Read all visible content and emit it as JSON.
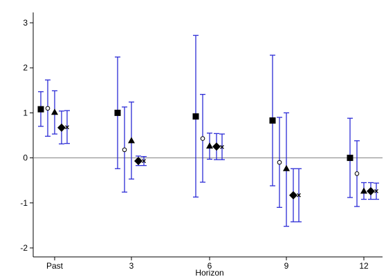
{
  "chart_data": {
    "type": "scatter",
    "xlabel": "Horizon",
    "ylabel": "",
    "categories": [
      "Past",
      "3",
      "6",
      "9",
      "12"
    ],
    "ylim": [
      -2.2,
      3.1
    ],
    "yticks": [
      -2,
      -1,
      0,
      1,
      2,
      3
    ],
    "ytick_labels": [
      "-2",
      "-1",
      "0",
      "1",
      "2",
      "3"
    ],
    "reference_line_y": 0,
    "grid": false,
    "legend": "none",
    "series": [
      {
        "marker": "square",
        "points": [
          {
            "category": "Past",
            "y": 1.08,
            "low": 0.7,
            "high": 1.47
          },
          {
            "category": "3",
            "y": 1.0,
            "low": -0.24,
            "high": 2.24
          },
          {
            "category": "6",
            "y": 0.92,
            "low": -0.87,
            "high": 2.72
          },
          {
            "category": "9",
            "y": 0.83,
            "low": -0.62,
            "high": 2.28
          },
          {
            "category": "12",
            "y": 0.0,
            "low": -0.88,
            "high": 0.88
          }
        ]
      },
      {
        "marker": "hollow-circle",
        "points": [
          {
            "category": "Past",
            "y": 1.1,
            "low": 0.48,
            "high": 1.73
          },
          {
            "category": "3",
            "y": 0.18,
            "low": -0.76,
            "high": 1.13
          },
          {
            "category": "6",
            "y": 0.43,
            "low": -0.54,
            "high": 1.41
          },
          {
            "category": "9",
            "y": -0.1,
            "low": -1.1,
            "high": 0.9
          },
          {
            "category": "12",
            "y": -0.35,
            "low": -1.08,
            "high": 0.38
          }
        ]
      },
      {
        "marker": "triangle",
        "points": [
          {
            "category": "Past",
            "y": 1.01,
            "low": 0.53,
            "high": 1.49
          },
          {
            "category": "3",
            "y": 0.38,
            "low": -0.47,
            "high": 1.24
          },
          {
            "category": "6",
            "y": 0.26,
            "low": -0.03,
            "high": 0.55
          },
          {
            "category": "9",
            "y": -0.24,
            "low": -1.52,
            "high": 1.0
          },
          {
            "category": "12",
            "y": -0.74,
            "low": -0.92,
            "high": -0.55
          }
        ]
      },
      {
        "marker": "diamond",
        "points": [
          {
            "category": "Past",
            "y": 0.67,
            "low": 0.31,
            "high": 1.04
          },
          {
            "category": "3",
            "y": -0.07,
            "low": -0.17,
            "high": 0.04
          },
          {
            "category": "6",
            "y": 0.25,
            "low": -0.04,
            "high": 0.54
          },
          {
            "category": "9",
            "y": -0.83,
            "low": -1.42,
            "high": -0.24
          },
          {
            "category": "12",
            "y": -0.74,
            "low": -0.92,
            "high": -0.55
          }
        ]
      },
      {
        "marker": "x",
        "points": [
          {
            "category": "Past",
            "y": 0.68,
            "low": 0.32,
            "high": 1.05
          },
          {
            "category": "3",
            "y": -0.07,
            "low": -0.17,
            "high": 0.03
          },
          {
            "category": "6",
            "y": 0.24,
            "low": -0.04,
            "high": 0.53
          },
          {
            "category": "9",
            "y": -0.83,
            "low": -1.42,
            "high": -0.24
          },
          {
            "category": "12",
            "y": -0.74,
            "low": -0.92,
            "high": -0.56
          }
        ]
      }
    ]
  },
  "colors": {
    "ci_line": "#2b2bd6",
    "marker": "#000000",
    "reference_line": "#808080",
    "axis": "#000000"
  }
}
